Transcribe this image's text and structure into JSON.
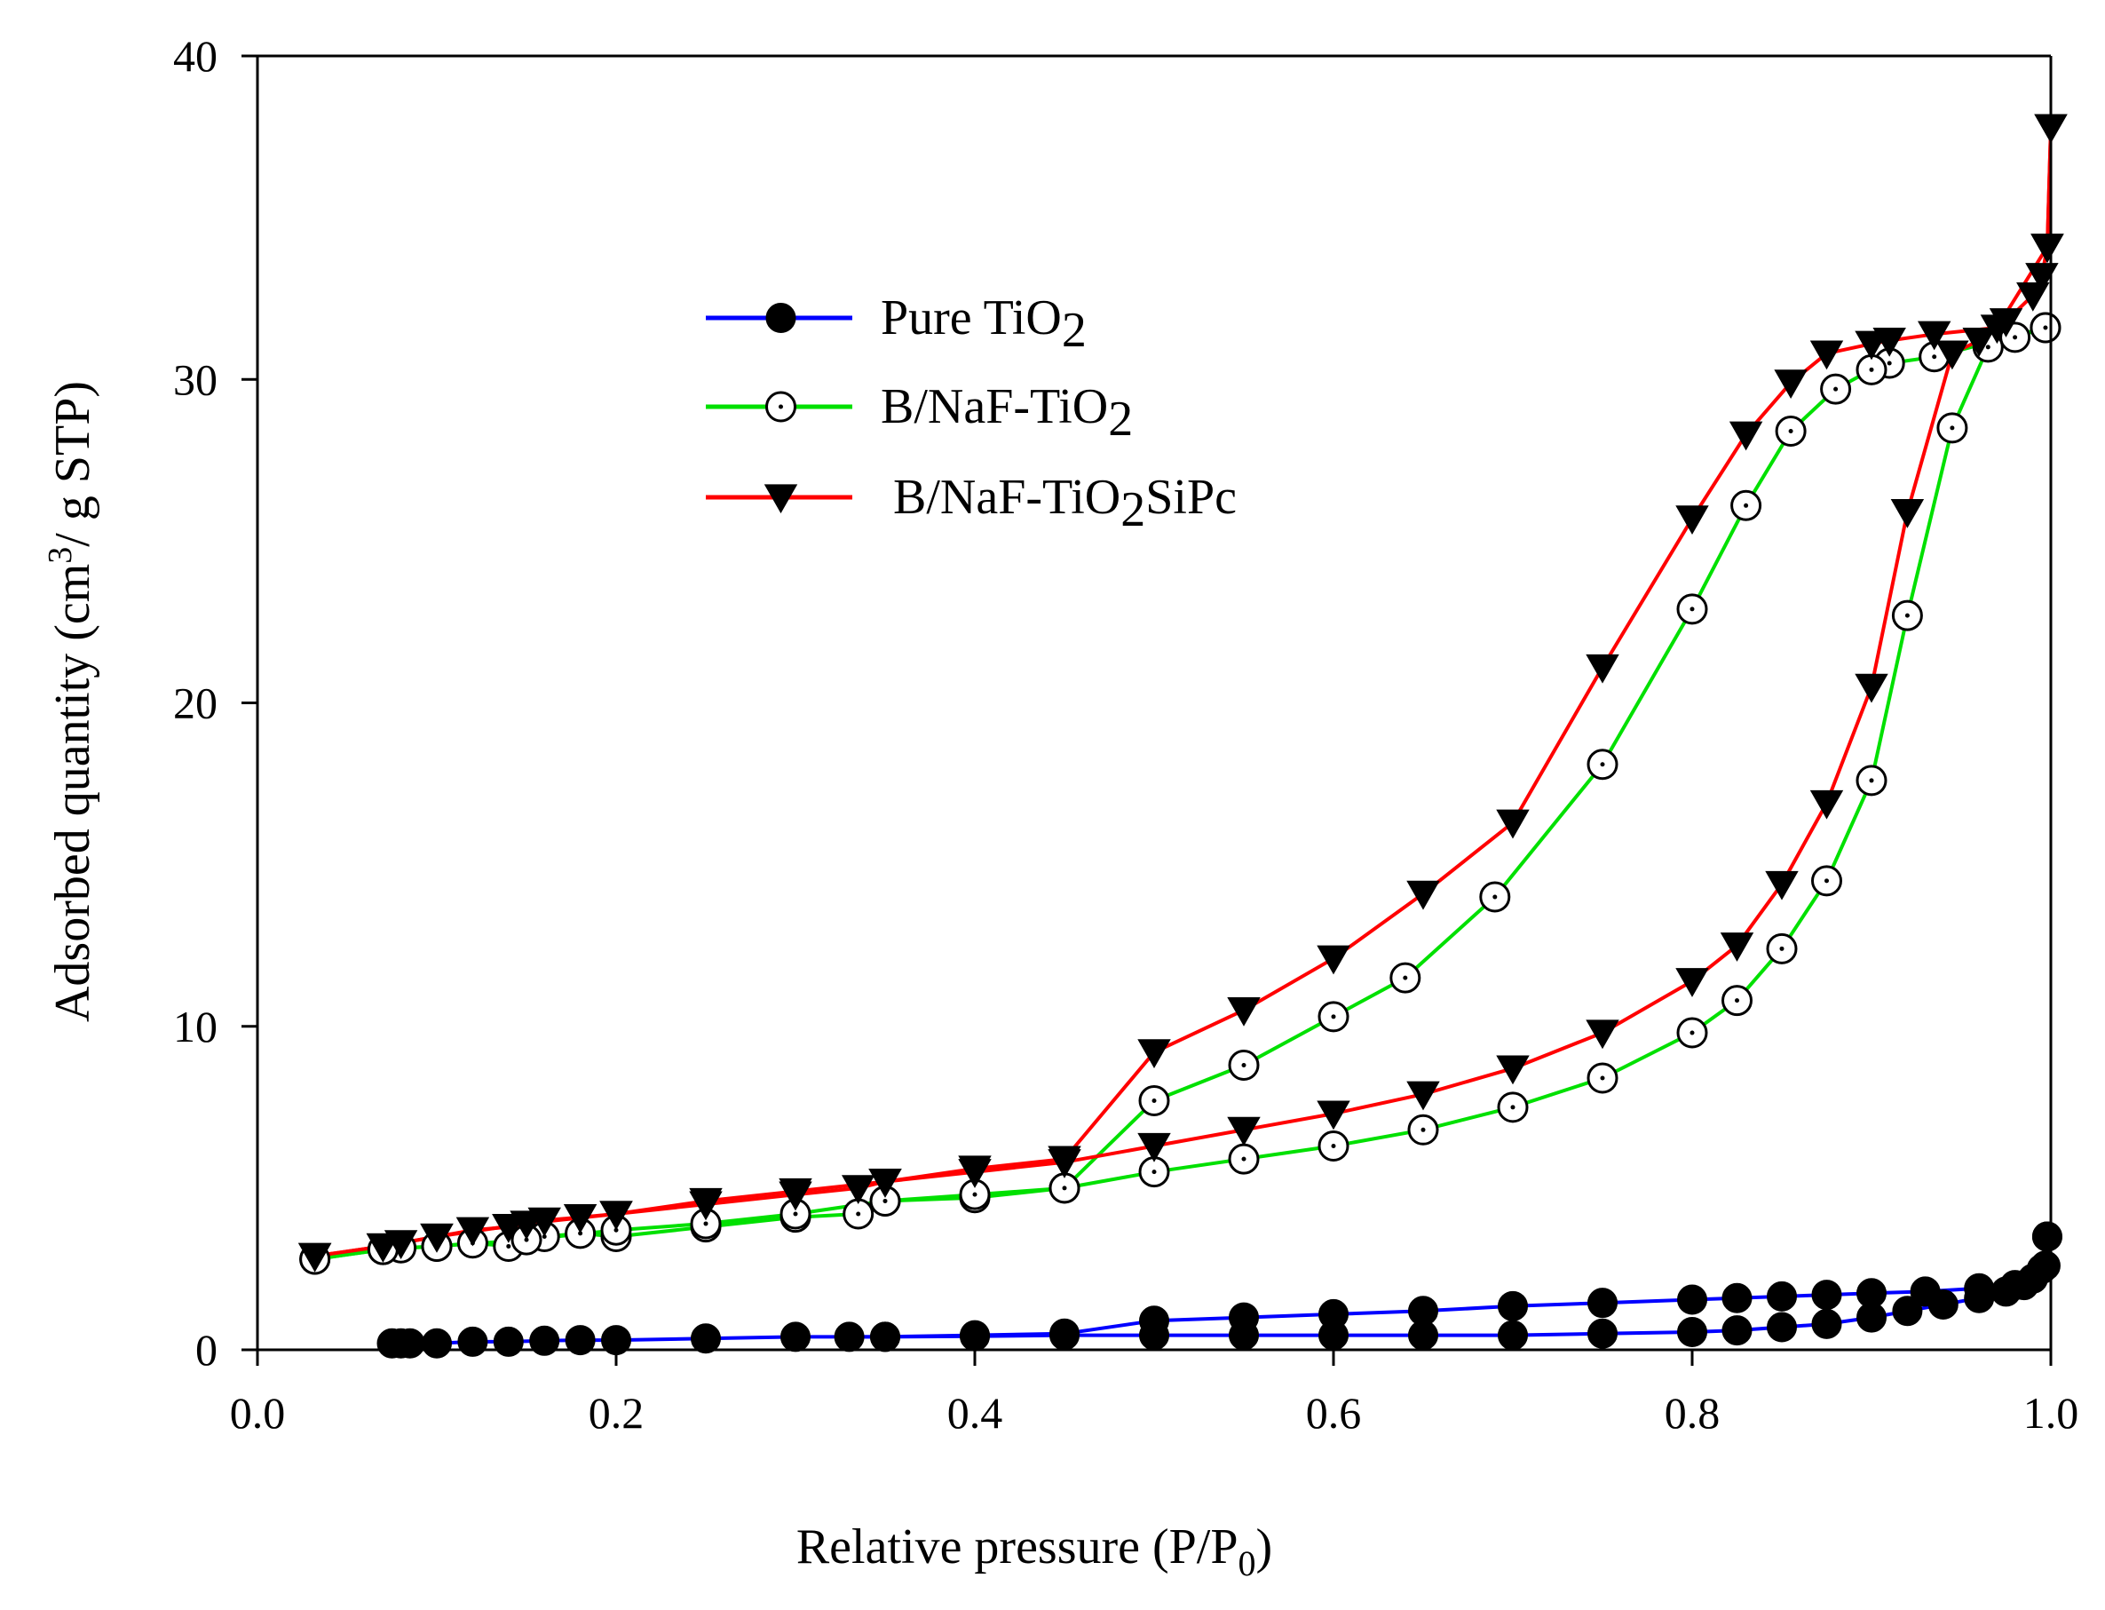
{
  "chart_data": {
    "type": "line",
    "title": "",
    "xlabel_main": "Relative pressure (P/P",
    "xlabel_sub": "0",
    "xlabel_tail": ")",
    "ylabel_main": "Adsorbed quantity (cm",
    "ylabel_sup": "3",
    "ylabel_tail": "/ g STP)",
    "xlim": [
      0.0,
      1.0
    ],
    "ylim": [
      0,
      40
    ],
    "xticks": [
      0.0,
      0.2,
      0.4,
      0.6,
      0.8,
      1.0
    ],
    "xtick_labels": [
      "0.0",
      "0.2",
      "0.4",
      "0.6",
      "0.8",
      "1.0"
    ],
    "yticks": [
      0,
      10,
      20,
      30,
      40
    ],
    "ytick_labels": [
      "0",
      "10",
      "20",
      "30",
      "40"
    ],
    "legend_position": "upper-left-center",
    "series": [
      {
        "name": "Pure TiO2",
        "legend_main": "Pure TiO",
        "legend_sub": "2",
        "legend_tail": "",
        "color": "#0000ff",
        "marker": "filled-circle",
        "adsorption": [
          [
            0.075,
            0.2
          ],
          [
            0.08,
            0.2
          ],
          [
            0.085,
            0.2
          ],
          [
            0.1,
            0.2
          ],
          [
            0.12,
            0.25
          ],
          [
            0.14,
            0.25
          ],
          [
            0.16,
            0.28
          ],
          [
            0.18,
            0.3
          ],
          [
            0.2,
            0.3
          ],
          [
            0.25,
            0.35
          ],
          [
            0.3,
            0.4
          ],
          [
            0.35,
            0.4
          ],
          [
            0.4,
            0.42
          ],
          [
            0.45,
            0.45
          ],
          [
            0.5,
            0.45
          ],
          [
            0.55,
            0.45
          ],
          [
            0.6,
            0.45
          ],
          [
            0.65,
            0.45
          ],
          [
            0.7,
            0.45
          ],
          [
            0.75,
            0.5
          ],
          [
            0.8,
            0.55
          ],
          [
            0.825,
            0.6
          ],
          [
            0.85,
            0.7
          ],
          [
            0.875,
            0.8
          ],
          [
            0.9,
            1.0
          ],
          [
            0.92,
            1.2
          ],
          [
            0.94,
            1.4
          ],
          [
            0.96,
            1.6
          ],
          [
            0.975,
            1.8
          ],
          [
            0.985,
            2.0
          ],
          [
            0.99,
            2.2
          ],
          [
            0.995,
            2.5
          ],
          [
            0.998,
            3.5
          ]
        ],
        "desorption": [
          [
            0.998,
            3.5
          ],
          [
            0.997,
            2.6
          ],
          [
            0.98,
            2.0
          ],
          [
            0.96,
            1.9
          ],
          [
            0.93,
            1.8
          ],
          [
            0.9,
            1.75
          ],
          [
            0.875,
            1.7
          ],
          [
            0.85,
            1.65
          ],
          [
            0.825,
            1.6
          ],
          [
            0.8,
            1.55
          ],
          [
            0.75,
            1.45
          ],
          [
            0.7,
            1.35
          ],
          [
            0.65,
            1.2
          ],
          [
            0.6,
            1.1
          ],
          [
            0.55,
            1.0
          ],
          [
            0.5,
            0.9
          ],
          [
            0.45,
            0.5
          ],
          [
            0.4,
            0.45
          ],
          [
            0.35,
            0.4
          ],
          [
            0.33,
            0.4
          ]
        ]
      },
      {
        "name": "B/NaF-TiO2",
        "legend_main": "B/NaF-TiO",
        "legend_sub": "2",
        "legend_tail": "",
        "color": "#00e000",
        "marker": "dotted-open-circle",
        "adsorption": [
          [
            0.032,
            2.8
          ],
          [
            0.07,
            3.1
          ],
          [
            0.08,
            3.15
          ],
          [
            0.1,
            3.2
          ],
          [
            0.12,
            3.3
          ],
          [
            0.14,
            3.2
          ],
          [
            0.16,
            3.5
          ],
          [
            0.18,
            3.6
          ],
          [
            0.2,
            3.5
          ],
          [
            0.25,
            3.8
          ],
          [
            0.3,
            4.1
          ],
          [
            0.335,
            4.2
          ],
          [
            0.35,
            4.6
          ],
          [
            0.4,
            4.7
          ],
          [
            0.45,
            5.0
          ],
          [
            0.5,
            5.5
          ],
          [
            0.55,
            5.9
          ],
          [
            0.6,
            6.3
          ],
          [
            0.65,
            6.8
          ],
          [
            0.7,
            7.5
          ],
          [
            0.75,
            8.4
          ],
          [
            0.8,
            9.8
          ],
          [
            0.825,
            10.8
          ],
          [
            0.85,
            12.4
          ],
          [
            0.875,
            14.5
          ],
          [
            0.9,
            17.6
          ],
          [
            0.92,
            22.7
          ],
          [
            0.945,
            28.5
          ],
          [
            0.965,
            31.0
          ],
          [
            0.98,
            31.3
          ],
          [
            0.997,
            31.6
          ]
        ],
        "desorption": [
          [
            0.997,
            31.6
          ],
          [
            0.935,
            30.7
          ],
          [
            0.91,
            30.5
          ],
          [
            0.9,
            30.3
          ],
          [
            0.88,
            29.7
          ],
          [
            0.855,
            28.4
          ],
          [
            0.83,
            26.1
          ],
          [
            0.8,
            22.9
          ],
          [
            0.75,
            18.1
          ],
          [
            0.69,
            14.0
          ],
          [
            0.64,
            11.5
          ],
          [
            0.6,
            10.3
          ],
          [
            0.55,
            8.8
          ],
          [
            0.5,
            7.7
          ],
          [
            0.45,
            5.0
          ],
          [
            0.4,
            4.8
          ],
          [
            0.35,
            4.6
          ],
          [
            0.3,
            4.2
          ],
          [
            0.25,
            3.9
          ],
          [
            0.2,
            3.7
          ],
          [
            0.15,
            3.4
          ],
          [
            0.1,
            3.2
          ],
          [
            0.07,
            3.1
          ],
          [
            0.032,
            2.8
          ]
        ]
      },
      {
        "name": "B/NaF-TiO2SiPc",
        "legend_main": "B/NaF-TiO",
        "legend_sub": "2",
        "legend_tail": "SiPc",
        "color": "#ff0000",
        "marker": "filled-down-triangle",
        "adsorption": [
          [
            0.032,
            2.9
          ],
          [
            0.07,
            3.2
          ],
          [
            0.08,
            3.3
          ],
          [
            0.1,
            3.5
          ],
          [
            0.12,
            3.7
          ],
          [
            0.14,
            3.8
          ],
          [
            0.16,
            4.0
          ],
          [
            0.18,
            4.1
          ],
          [
            0.2,
            4.2
          ],
          [
            0.25,
            4.5
          ],
          [
            0.3,
            4.8
          ],
          [
            0.335,
            5.0
          ],
          [
            0.35,
            5.2
          ],
          [
            0.4,
            5.5
          ],
          [
            0.45,
            5.8
          ],
          [
            0.5,
            6.3
          ],
          [
            0.55,
            6.8
          ],
          [
            0.6,
            7.3
          ],
          [
            0.65,
            7.9
          ],
          [
            0.7,
            8.7
          ],
          [
            0.75,
            9.8
          ],
          [
            0.8,
            11.4
          ],
          [
            0.825,
            12.5
          ],
          [
            0.85,
            14.4
          ],
          [
            0.875,
            16.9
          ],
          [
            0.9,
            20.5
          ],
          [
            0.92,
            25.9
          ],
          [
            0.945,
            30.8
          ],
          [
            0.96,
            31.2
          ],
          [
            0.975,
            31.8
          ],
          [
            0.99,
            32.6
          ],
          [
            0.995,
            33.2
          ],
          [
            0.998,
            34.1
          ],
          [
            1.0,
            37.8
          ]
        ],
        "desorption": [
          [
            1.0,
            37.8
          ],
          [
            0.998,
            34.1
          ],
          [
            0.97,
            31.6
          ],
          [
            0.935,
            31.4
          ],
          [
            0.91,
            31.2
          ],
          [
            0.9,
            31.1
          ],
          [
            0.875,
            30.8
          ],
          [
            0.855,
            29.9
          ],
          [
            0.83,
            28.3
          ],
          [
            0.8,
            25.7
          ],
          [
            0.75,
            21.1
          ],
          [
            0.7,
            16.3
          ],
          [
            0.65,
            14.1
          ],
          [
            0.6,
            12.1
          ],
          [
            0.55,
            10.5
          ],
          [
            0.5,
            9.2
          ],
          [
            0.45,
            5.9
          ],
          [
            0.4,
            5.6
          ],
          [
            0.35,
            5.2
          ],
          [
            0.3,
            4.9
          ],
          [
            0.25,
            4.6
          ],
          [
            0.2,
            4.2
          ],
          [
            0.15,
            3.9
          ],
          [
            0.1,
            3.5
          ],
          [
            0.07,
            3.2
          ],
          [
            0.032,
            2.9
          ]
        ]
      }
    ]
  }
}
